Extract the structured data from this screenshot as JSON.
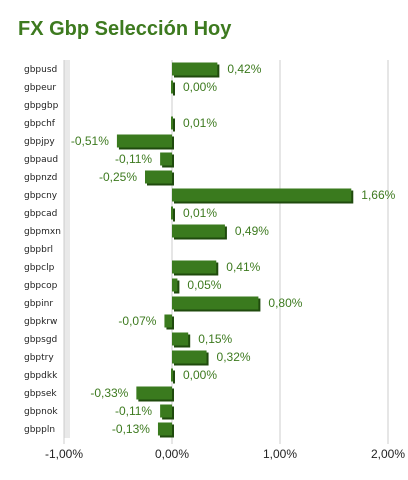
{
  "title": "FX Gbp Selección Hoy",
  "colors": {
    "title": "#3d7a1f",
    "bar": "#3a7a1e",
    "bar_shade": "#1f4a0d",
    "label": "#3d7a1f",
    "grid": "#cccccc",
    "band": "#e9e9e9"
  },
  "chart_data": {
    "type": "bar",
    "orientation": "horizontal",
    "title": "FX Gbp Selección Hoy",
    "xlabel": "",
    "ylabel": "",
    "xlim": [
      -1.0,
      2.0
    ],
    "ticks": [
      -1.0,
      0.0,
      1.0,
      2.0
    ],
    "tick_labels": [
      "-1,00%",
      "0,00%",
      "1,00%",
      "2,00%"
    ],
    "grid": true,
    "unit": "%",
    "categories": [
      "gbpusd",
      "gbpeur",
      "gbpgbp",
      "gbpchf",
      "gbpjpy",
      "gbpaud",
      "gbpnzd",
      "gbpcny",
      "gbpcad",
      "gbpmxn",
      "gbpbrl",
      "gbpclp",
      "gbpcop",
      "gbpinr",
      "gbpkrw",
      "gbpsgd",
      "gbptry",
      "gbpdkk",
      "gbpsek",
      "gbpnok",
      "gbppln"
    ],
    "values": [
      0.42,
      0.0,
      null,
      0.01,
      -0.51,
      -0.11,
      -0.25,
      1.66,
      0.01,
      0.49,
      null,
      0.41,
      0.05,
      0.8,
      -0.07,
      0.15,
      0.32,
      0.0,
      -0.33,
      -0.11,
      -0.13
    ],
    "value_labels": [
      "0,42%",
      "0,00%",
      "",
      "0,01%",
      "-0,51%",
      "-0,11%",
      "-0,25%",
      "1,66%",
      "0,01%",
      "0,49%",
      "",
      "0,41%",
      "0,05%",
      "0,80%",
      "-0,07%",
      "0,15%",
      "0,32%",
      "0,00%",
      "-0,33%",
      "-0,11%",
      "-0,13%"
    ]
  }
}
